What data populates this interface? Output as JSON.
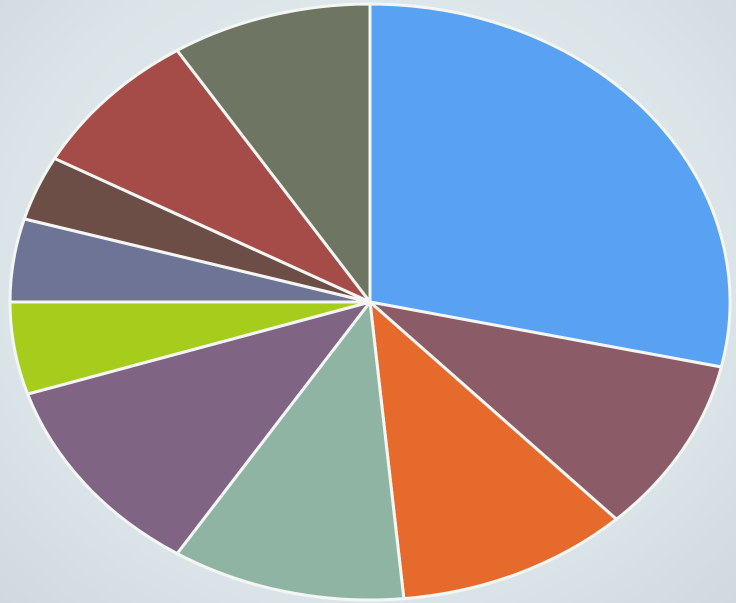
{
  "chart_data": {
    "type": "pie",
    "title": "",
    "start_angle_deg": 0,
    "direction": "clockwise",
    "slices": [
      {
        "value": 28.5,
        "color": "#58a1f3"
      },
      {
        "value": 9.5,
        "color": "#8b5c68"
      },
      {
        "value": 10.5,
        "color": "#e66a2c"
      },
      {
        "value": 10.5,
        "color": "#8fb4a4"
      },
      {
        "value": 11.0,
        "color": "#806484"
      },
      {
        "value": 5.0,
        "color": "#a6cc1c"
      },
      {
        "value": 4.5,
        "color": "#6e7496"
      },
      {
        "value": 3.5,
        "color": "#6c4e46"
      },
      {
        "value": 8.0,
        "color": "#a54c48"
      },
      {
        "value": 9.0,
        "color": "#6e7562"
      }
    ]
  }
}
